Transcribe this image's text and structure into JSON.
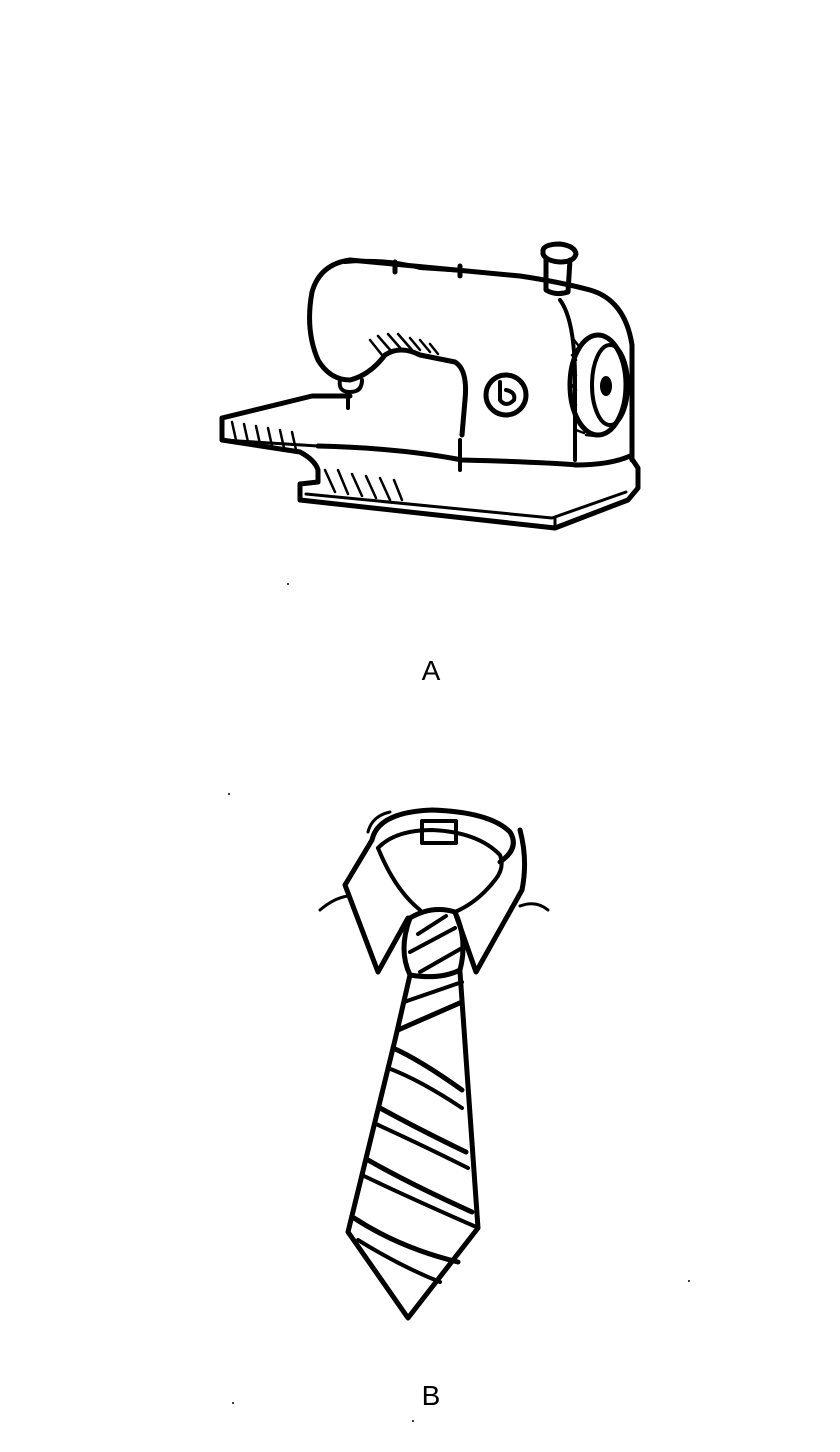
{
  "figures": [
    {
      "label": "A",
      "icon": "sewing-machine-icon"
    },
    {
      "label": "B",
      "icon": "necktie-icon"
    }
  ],
  "colors": {
    "ink": "#000000",
    "paper": "#ffffff"
  }
}
